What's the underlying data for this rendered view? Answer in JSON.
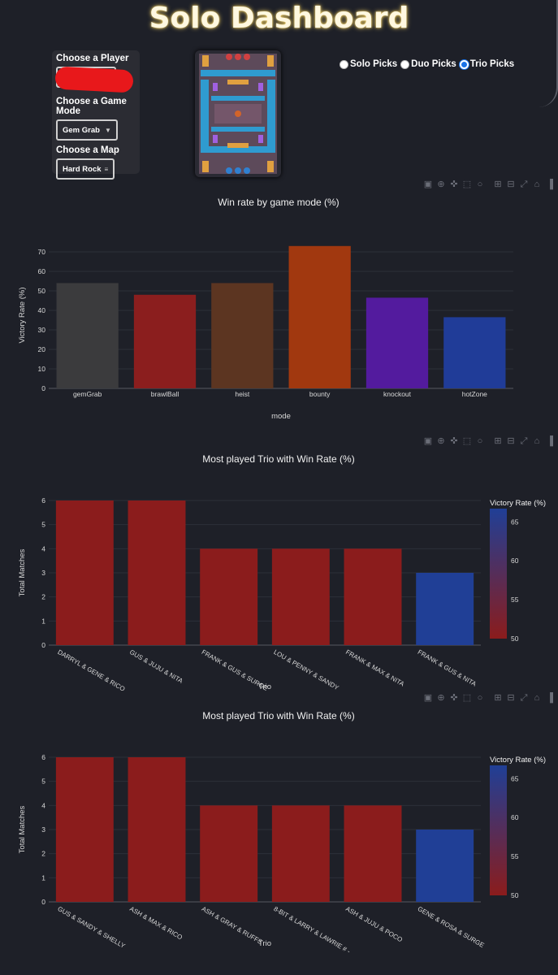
{
  "header": {
    "title": "Solo Dashboard"
  },
  "controls": {
    "player_label": "Choose a Player",
    "mode_label": "Choose a Game Mode",
    "mode_value": "Gem Grab",
    "map_label": "Choose a Map",
    "map_value": "Hard Rock"
  },
  "picks": {
    "options": [
      "Solo Picks",
      "Duo Picks",
      "Trio Picks"
    ],
    "selected": "Trio Picks",
    "solo": "Solo Picks",
    "duo": "Duo Picks",
    "trio": "Trio Picks"
  },
  "modebar_icons": [
    "camera-icon",
    "zoom-icon",
    "pan-icon",
    "box-select-icon",
    "lasso-icon",
    "zoom-in-icon",
    "zoom-out-icon",
    "autoscale-icon",
    "home-icon",
    "plotly-logo-icon"
  ],
  "colors": {
    "background": "#1e2028",
    "radio_accent": "#1a73e8",
    "colorscale_low": "#8b1c1c",
    "colorscale_high": "#203f96"
  },
  "chart_data": [
    {
      "type": "bar",
      "title": "Win rate by game mode (%)",
      "xlabel": "mode",
      "ylabel": "Victory Rate (%)",
      "categories": [
        "gemGrab",
        "brawlBall",
        "heist",
        "bounty",
        "knockout",
        "hotZone"
      ],
      "values": [
        54,
        48,
        54,
        73,
        46.5,
        36.5
      ],
      "colors": [
        "#3b3b3d",
        "#8b1e1e",
        "#5c3521",
        "#a1380f",
        "#531b9e",
        "#203c98"
      ],
      "ylim": [
        0,
        75
      ],
      "yticks": [
        0,
        10,
        20,
        30,
        40,
        50,
        60,
        70
      ]
    },
    {
      "type": "bar",
      "title": "Most played Trio with Win Rate (%)",
      "xlabel": "Trio",
      "ylabel": "Total Matches",
      "categories": [
        "DARRYL & GENE & RICO",
        "GUS & JUJU & NITA",
        "FRANK & GUS & SURGE",
        "LOU & PENNY & SANDY",
        "FRANK & MAX & NITA",
        "FRANK & GUS & NITA"
      ],
      "values": [
        6,
        6,
        4,
        4,
        4,
        3
      ],
      "color_values": [
        50,
        50,
        50,
        50,
        50,
        66.7
      ],
      "ylim": [
        0,
        6
      ],
      "yticks": [
        0,
        1,
        2,
        3,
        4,
        5,
        6
      ],
      "colorbar": {
        "title": "Victory Rate (%)",
        "ticks": [
          50,
          55,
          60,
          65
        ],
        "range": [
          50,
          66.7
        ]
      }
    },
    {
      "type": "bar",
      "title": "Most played Trio with Win Rate (%)",
      "xlabel": "Trio",
      "ylabel": "Total Matches",
      "categories": [
        "GUS & SANDY & SHELLY",
        "ASH & MAX & RICO",
        "ASH & GRAY & RUFFS",
        "8-BIT & LARRY & LAWRIE # -",
        "ASH & JUJU & POCO",
        "GENE & ROSA & SURGE"
      ],
      "values": [
        6,
        6,
        4,
        4,
        4,
        3
      ],
      "color_values": [
        50,
        50,
        50,
        50,
        50,
        66.7
      ],
      "ylim": [
        0,
        6
      ],
      "yticks": [
        0,
        1,
        2,
        3,
        4,
        5,
        6
      ],
      "colorbar": {
        "title": "Victory Rate (%)",
        "ticks": [
          50,
          55,
          60,
          65
        ],
        "range": [
          50,
          66.7
        ]
      }
    }
  ]
}
